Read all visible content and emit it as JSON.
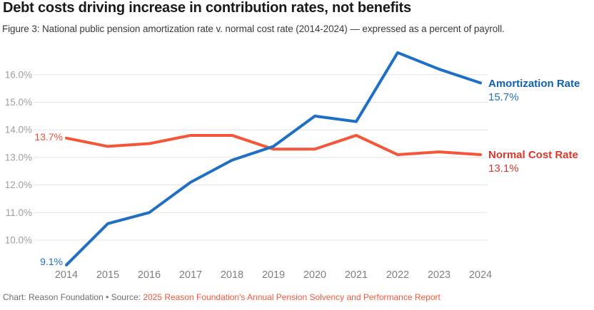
{
  "header": {
    "title": "Debt costs driving increase in contribution rates, not benefits",
    "subtitle": "Figure 3: National public pension amortization rate v. normal cost rate (2014-2024) — expressed as a percent of payroll."
  },
  "legend": {
    "amortization": {
      "label": "Amortization Rate",
      "value": "15.7%"
    },
    "normal": {
      "label": "Normal Cost Rate",
      "value": "13.1%"
    }
  },
  "annotations": {
    "normal_start": "13.7%",
    "amortization_start": "9.1%"
  },
  "footer": {
    "prefix": "Chart: Reason Foundation • Source: ",
    "link": "2025 Reason Foundation's Annual Pension Solvency and Performance Report"
  },
  "colors": {
    "amortization_line": "#1f6fc4",
    "amortization_text": "#1161ae",
    "normal_cost_line": "#f4563a",
    "normal_cost_text": "#d6392b",
    "gridline": "#e3e3e3",
    "y_tick_text": "#9e9e9e",
    "x_tick_text": "#7f7f7f",
    "source_link": "#f4563a"
  },
  "chart_data": {
    "type": "line",
    "title": "Debt costs driving increase in contribution rates, not benefits",
    "subtitle": "Figure 3: National public pension amortization rate v. normal cost rate (2014-2024) — expressed as a percent of payroll.",
    "x": [
      2014,
      2015,
      2016,
      2017,
      2018,
      2019,
      2020,
      2021,
      2022,
      2023,
      2024
    ],
    "series": [
      {
        "name": "Amortization Rate",
        "color": "#1f6fc4",
        "values": [
          9.1,
          10.6,
          11.0,
          12.1,
          12.9,
          13.4,
          14.5,
          14.3,
          16.8,
          16.2,
          15.7
        ],
        "start_label": "9.1%",
        "end_label": "15.7%"
      },
      {
        "name": "Normal Cost Rate",
        "color": "#f4563a",
        "values": [
          13.7,
          13.4,
          13.5,
          13.8,
          13.8,
          13.3,
          13.3,
          13.8,
          13.1,
          13.2,
          13.1
        ],
        "start_label": "13.7%",
        "end_label": "13.1%"
      }
    ],
    "y_ticks": [
      10,
      11,
      12,
      13,
      14,
      15,
      16
    ],
    "y_tick_labels": [
      "10.0%",
      "11.0%",
      "12.0%",
      "13.0%",
      "14.0%",
      "15.0%",
      "16.0%"
    ],
    "ylim": [
      9.0,
      17.0
    ],
    "xlabel": "",
    "ylabel": "percent of payroll",
    "grid": true,
    "legend_position": "right-of-line-ends"
  }
}
